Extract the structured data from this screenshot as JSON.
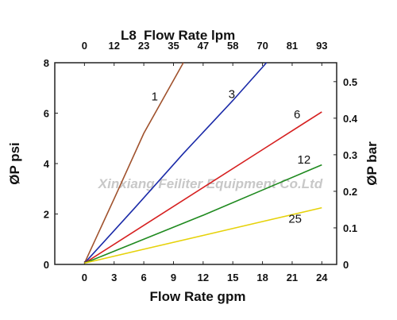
{
  "chart_data": {
    "type": "line",
    "title": "Flow Rate lpm",
    "title_prefix": "L8",
    "xlabel": "Flow Rate gpm",
    "ylabel": "ØP psi",
    "ylabel_right": "ØP bar",
    "xlim": [
      -3,
      25.5
    ],
    "ylim": [
      0,
      8
    ],
    "xticks": [
      "0",
      "3",
      "6",
      "9",
      "12",
      "15",
      "18",
      "21",
      "24"
    ],
    "xtick_values": [
      0,
      3,
      6,
      9,
      12,
      15,
      18,
      21,
      24
    ],
    "xticks_top": [
      "0",
      "12",
      "23",
      "35",
      "47",
      "58",
      "70",
      "81",
      "93"
    ],
    "xticks_top_values": [
      0,
      3,
      6,
      9,
      12,
      15,
      18,
      21,
      24
    ],
    "yticks": [
      "0",
      "2",
      "4",
      "6",
      "8"
    ],
    "yticks_right": [
      "0",
      "0.1",
      "0.2",
      "0.3",
      "0.4",
      "0.5"
    ],
    "yticks_right_psi": [
      0,
      1.45,
      2.9,
      4.35,
      5.8,
      7.25
    ],
    "grid": false,
    "watermark": "Xinxiang Feiliter Equipment Co.Ltd",
    "series": [
      {
        "name": "1",
        "color": "#a0522d",
        "x": [
          0,
          3,
          6,
          10
        ],
        "y": [
          0.05,
          2.6,
          5.2,
          8.0
        ],
        "label_pos": [
          7.1,
          6.5
        ]
      },
      {
        "name": "3",
        "color": "#1a2aa8",
        "x": [
          0,
          5,
          10,
          15,
          18.4
        ],
        "y": [
          0.05,
          2.2,
          4.4,
          6.5,
          8.0
        ],
        "label_pos": [
          14.9,
          6.6
        ]
      },
      {
        "name": "6",
        "color": "#d62020",
        "x": [
          0,
          6,
          12,
          18,
          24
        ],
        "y": [
          0.05,
          1.55,
          3.05,
          4.55,
          6.05
        ],
        "label_pos": [
          21.5,
          5.8
        ]
      },
      {
        "name": "12",
        "color": "#1f8a1f",
        "x": [
          0,
          6,
          12,
          18,
          24
        ],
        "y": [
          0.05,
          1.0,
          1.95,
          2.95,
          3.95
        ],
        "label_pos": [
          22.2,
          4.0
        ]
      },
      {
        "name": "25",
        "color": "#e6d20a",
        "x": [
          0,
          6,
          12,
          18,
          24
        ],
        "y": [
          0.05,
          0.6,
          1.15,
          1.7,
          2.25
        ],
        "label_pos": [
          21.3,
          1.65
        ]
      }
    ]
  }
}
